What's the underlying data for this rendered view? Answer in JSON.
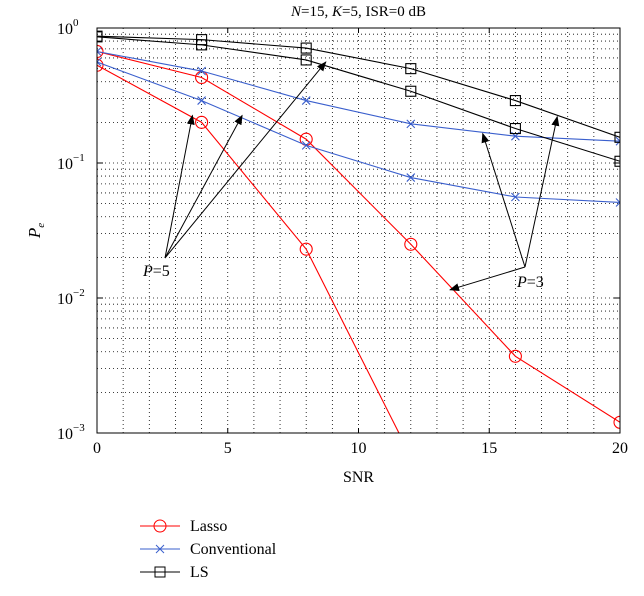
{
  "chart_data": {
    "type": "line",
    "title_parts": {
      "n_label": "N",
      "n_value": "=15, ",
      "k_label": "K",
      "k_value": "=5, ISR=0 dB"
    },
    "xlabel": "SNR",
    "ylabel": {
      "base": "P",
      "sub": "e"
    },
    "xlim": [
      0,
      20
    ],
    "ylim": [
      0.001,
      1
    ],
    "yscale": "log",
    "grid": true,
    "x_ticks": [
      "0",
      "5",
      "10",
      "15",
      "20"
    ],
    "y_ticks": [
      {
        "base": "10",
        "exp": "0"
      },
      {
        "base": "10",
        "exp": "−1"
      },
      {
        "base": "10",
        "exp": "−2"
      },
      {
        "base": "10",
        "exp": "−3"
      }
    ],
    "x": [
      0,
      4,
      8,
      12,
      16,
      20
    ],
    "series": [
      {
        "name": "Lasso",
        "group": "P=3",
        "color": "#ff0000",
        "marker": "circle",
        "values": [
          0.67,
          0.43,
          0.15,
          0.025,
          0.0037,
          0.0012
        ]
      },
      {
        "name": "Lasso",
        "group": "P=5",
        "color": "#ff0000",
        "marker": "circle",
        "values": [
          0.53,
          0.2,
          0.023,
          0.00067,
          null,
          null
        ]
      },
      {
        "name": "Conventional",
        "group": "P=3",
        "color": "#3a5fcd",
        "marker": "x",
        "values": [
          0.67,
          0.48,
          0.29,
          0.195,
          0.158,
          0.145
        ]
      },
      {
        "name": "Conventional",
        "group": "P=5",
        "color": "#3a5fcd",
        "marker": "x",
        "values": [
          0.56,
          0.29,
          0.135,
          0.078,
          0.056,
          0.051
        ]
      },
      {
        "name": "LS",
        "group": "P=3",
        "color": "#000000",
        "marker": "square",
        "values": [
          0.87,
          0.82,
          0.71,
          0.5,
          0.29,
          0.155
        ]
      },
      {
        "name": "LS",
        "group": "P=5",
        "color": "#000000",
        "marker": "square",
        "values": [
          0.86,
          0.75,
          0.58,
          0.34,
          0.18,
          0.103
        ]
      }
    ],
    "annotations": [
      {
        "var": "P",
        "text": "=5"
      },
      {
        "var": "P",
        "text": "=3"
      }
    ],
    "legend": {
      "placement": "bottom-left",
      "entries": [
        "Lasso",
        "Conventional",
        "LS"
      ]
    }
  }
}
